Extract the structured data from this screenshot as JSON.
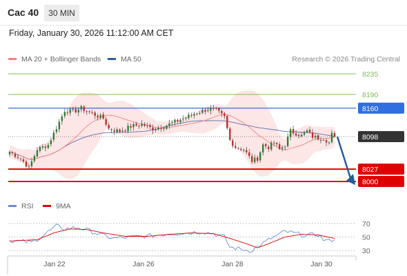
{
  "header": {
    "symbol": "Cac 40",
    "timeframe": "30 MIN"
  },
  "datetime": "Friday, January 30, 2026 11:12:00 AM CET",
  "legend": {
    "ma20": {
      "label": "MA 20 + Bollinger Bands",
      "color": "#f08080"
    },
    "ma50": {
      "label": "MA 50",
      "color": "#2a5a9a"
    }
  },
  "credit": "Research © 2026 Trading Central",
  "rsi_legend": {
    "rsi": {
      "label": "RSI",
      "color": "#6a8bd6"
    },
    "ma9": {
      "label": "9MA",
      "color": "#e00000"
    }
  },
  "colors": {
    "up": "#2e7d32",
    "down": "#c62828",
    "wick": "#444444",
    "band_fill": "#fde2e2",
    "ma20": "#f08080",
    "ma50": "#5b6fa8",
    "resistance_green": "#7cbf4e",
    "pivot_blue": "#2f6fdf",
    "support_red": "#e00000",
    "last_price": "#333333",
    "arrow": "#2a5a9a"
  },
  "chart_data": [
    {
      "type": "candlestick",
      "title": "Cac 40",
      "timeframe": "30 MIN",
      "ylim": [
        7990,
        8250
      ],
      "x_tick_labels": [
        "Jan 22",
        "Jan 26",
        "Jan 28",
        "Jan 30"
      ],
      "last_price": 8098,
      "levels": [
        {
          "value": 8235,
          "label": "8235",
          "kind": "resistance"
        },
        {
          "value": 8190,
          "label": "8190",
          "kind": "resistance"
        },
        {
          "value": 8160,
          "label": "8160",
          "kind": "pivot"
        },
        {
          "value": 8098,
          "label": "8098",
          "kind": "last"
        },
        {
          "value": 8027,
          "label": "8027",
          "kind": "support"
        },
        {
          "value": 8000,
          "label": "8000",
          "kind": "target"
        }
      ],
      "forecast": {
        "from": 8098,
        "to": 8000
      },
      "anchors": [
        [
          0,
          8065
        ],
        [
          4,
          8050
        ],
        [
          7,
          8030
        ],
        [
          10,
          8070
        ],
        [
          14,
          8080
        ],
        [
          18,
          8130
        ],
        [
          20,
          8155
        ],
        [
          23,
          8152
        ],
        [
          26,
          8160
        ],
        [
          30,
          8148
        ],
        [
          34,
          8138
        ],
        [
          36,
          8115
        ],
        [
          40,
          8110
        ],
        [
          44,
          8120
        ],
        [
          48,
          8125
        ],
        [
          52,
          8115
        ],
        [
          56,
          8120
        ],
        [
          60,
          8130
        ],
        [
          64,
          8140
        ],
        [
          68,
          8150
        ],
        [
          72,
          8158
        ],
        [
          75,
          8155
        ],
        [
          78,
          8140
        ],
        [
          80,
          8090
        ],
        [
          82,
          8075
        ],
        [
          85,
          8070
        ],
        [
          88,
          8045
        ],
        [
          90,
          8050
        ],
        [
          92,
          8080
        ],
        [
          94,
          8075
        ],
        [
          96,
          8085
        ],
        [
          98,
          8070
        ],
        [
          100,
          8080
        ],
        [
          102,
          8110
        ],
        [
          104,
          8105
        ],
        [
          106,
          8100
        ],
        [
          108,
          8110
        ],
        [
          110,
          8098
        ],
        [
          112,
          8095
        ],
        [
          114,
          8095
        ],
        [
          116,
          8085
        ],
        [
          117,
          8103
        ],
        [
          118,
          8098
        ]
      ]
    },
    {
      "type": "line",
      "title": "RSI",
      "ylim": [
        25,
        78
      ],
      "y_ticks": [
        70,
        50,
        30
      ],
      "series": [
        {
          "name": "RSI",
          "points": [
            [
              0,
              45
            ],
            [
              8,
              42
            ],
            [
              12,
              52
            ],
            [
              17,
              66
            ],
            [
              20,
              62
            ],
            [
              25,
              64
            ],
            [
              30,
              58
            ],
            [
              34,
              52
            ],
            [
              38,
              48
            ],
            [
              45,
              50
            ],
            [
              52,
              52
            ],
            [
              58,
              55
            ],
            [
              64,
              56
            ],
            [
              70,
              58
            ],
            [
              74,
              55
            ],
            [
              78,
              50
            ],
            [
              80,
              35
            ],
            [
              84,
              32
            ],
            [
              88,
              30
            ],
            [
              91,
              38
            ],
            [
              95,
              48
            ],
            [
              100,
              58
            ],
            [
              104,
              55
            ],
            [
              108,
              52
            ],
            [
              112,
              54
            ],
            [
              114,
              46
            ],
            [
              116,
              44
            ],
            [
              118,
              48
            ]
          ]
        },
        {
          "name": "9MA",
          "points": [
            [
              0,
              44
            ],
            [
              10,
              46
            ],
            [
              16,
              56
            ],
            [
              22,
              62
            ],
            [
              28,
              61
            ],
            [
              34,
              56
            ],
            [
              42,
              51
            ],
            [
              50,
              51
            ],
            [
              58,
              54
            ],
            [
              66,
              56
            ],
            [
              74,
              55
            ],
            [
              80,
              48
            ],
            [
              86,
              40
            ],
            [
              90,
              34
            ],
            [
              94,
              40
            ],
            [
              100,
              50
            ],
            [
              106,
              54
            ],
            [
              112,
              53
            ],
            [
              118,
              48
            ]
          ]
        }
      ]
    }
  ]
}
